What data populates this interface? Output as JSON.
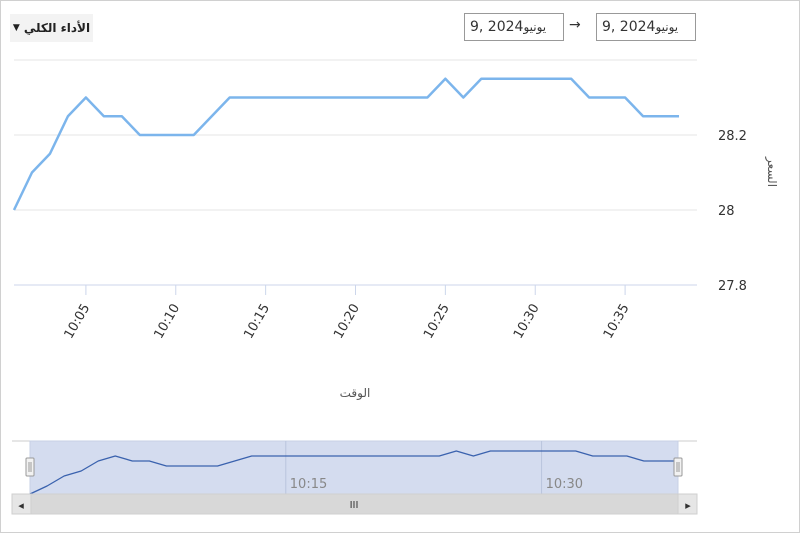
{
  "controls": {
    "performance_label": "الأداء الكلي",
    "date_from": {
      "month": "يونيو",
      "rest": " 9, 2024"
    },
    "date_to": {
      "month": "يونيو",
      "rest": " 9, 2024"
    },
    "range_arrow": "→"
  },
  "navigator": {
    "ticks": [
      "10:15",
      "10:30"
    ],
    "grip": "III",
    "left_arrow": "◂",
    "right_arrow": "▸"
  },
  "colors": {
    "line": "#7cb5ec",
    "navigator_fill": "#d4dcef",
    "navigator_line": "#3a62ae",
    "scrollbar": "#d8d8d8"
  },
  "chart_data": {
    "type": "line",
    "xlabel": "الوقت",
    "ylabel": "السعر",
    "x_ticks": [
      "10:05",
      "10:10",
      "10:15",
      "10:20",
      "10:25",
      "10:30",
      "10:35"
    ],
    "y_ticks": [
      "27.8",
      "28",
      "28.2"
    ],
    "ylim": [
      27.8,
      28.4
    ],
    "series": [
      {
        "x": [
          "10:01",
          "10:02",
          "10:03",
          "10:04",
          "10:05",
          "10:06",
          "10:07",
          "10:08",
          "10:09",
          "10:10",
          "10:11",
          "10:12",
          "10:13",
          "10:14",
          "10:15",
          "10:16",
          "10:17",
          "10:18",
          "10:19",
          "10:20",
          "10:21",
          "10:22",
          "10:23",
          "10:24",
          "10:25",
          "10:26",
          "10:27",
          "10:28",
          "10:29",
          "10:30",
          "10:31",
          "10:32",
          "10:33",
          "10:34",
          "10:35",
          "10:36",
          "10:37",
          "10:38"
        ],
        "values": [
          28.0,
          28.1,
          28.15,
          28.25,
          28.3,
          28.25,
          28.25,
          28.2,
          28.2,
          28.2,
          28.2,
          28.25,
          28.3,
          28.3,
          28.3,
          28.3,
          28.3,
          28.3,
          28.3,
          28.3,
          28.3,
          28.3,
          28.3,
          28.3,
          28.35,
          28.3,
          28.35,
          28.35,
          28.35,
          28.35,
          28.35,
          28.35,
          28.3,
          28.3,
          28.3,
          28.25,
          28.25,
          28.25
        ]
      }
    ]
  }
}
